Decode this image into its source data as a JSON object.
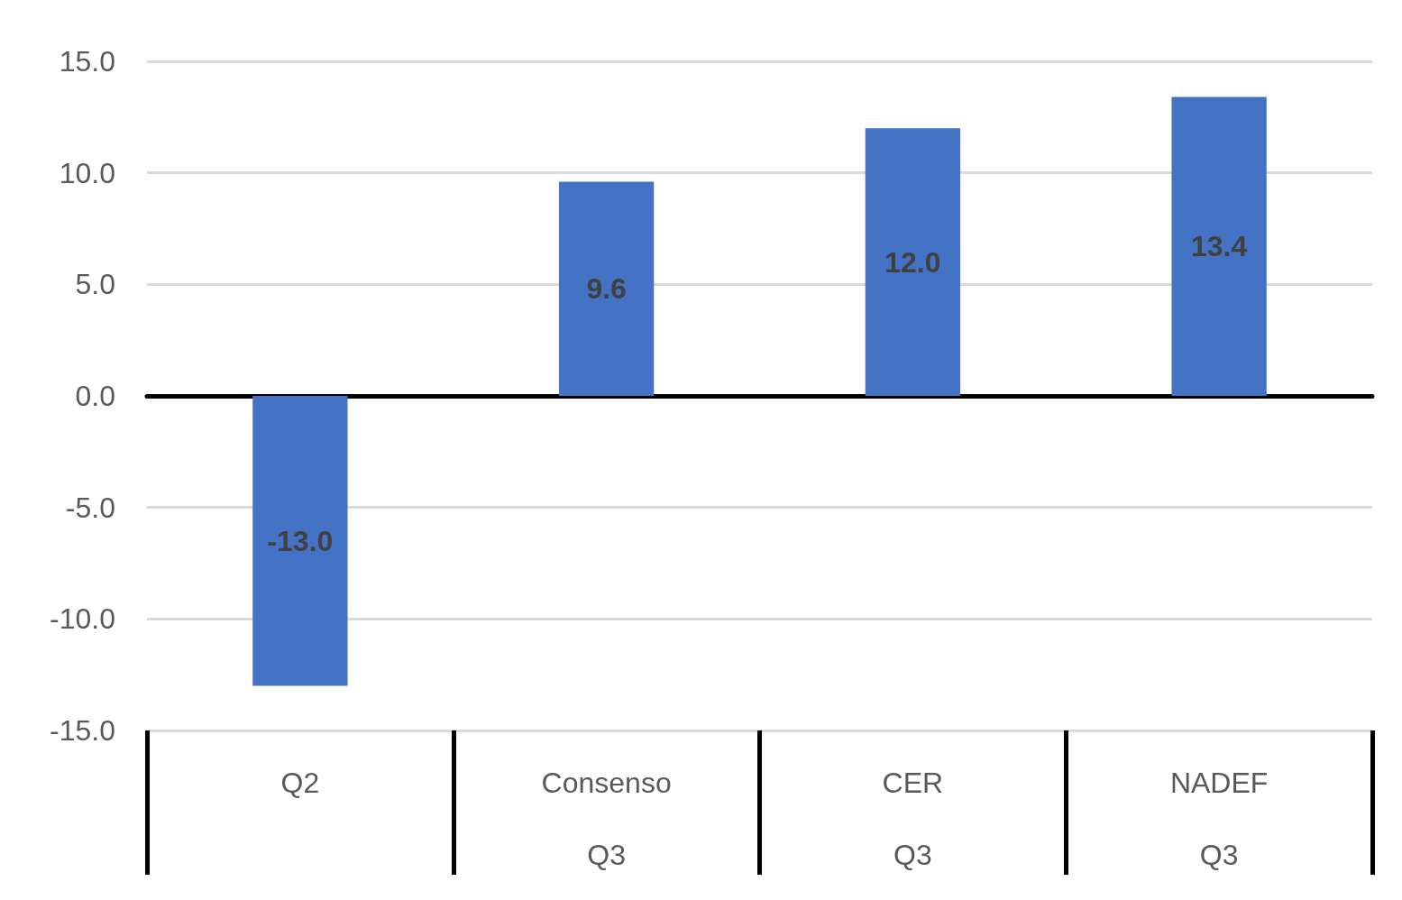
{
  "chart_data": {
    "type": "bar",
    "categories": [
      "Q2",
      "Consenso\nQ3",
      "CER\nQ3",
      "NADEF\nQ3"
    ],
    "values": [
      -13.0,
      9.6,
      12.0,
      13.4
    ],
    "value_labels": [
      "-13.0",
      "9.6",
      "12.0",
      "13.4"
    ],
    "color": "#4472c4",
    "ylim": [
      -15,
      15
    ],
    "yticks": [
      {
        "value": -15,
        "label": "-15.0"
      },
      {
        "value": -10,
        "label": "-10.0"
      },
      {
        "value": -5,
        "label": "-5.0"
      },
      {
        "value": 0,
        "label": "0.0"
      },
      {
        "value": 5,
        "label": "5.0"
      },
      {
        "value": 10,
        "label": "10.0"
      },
      {
        "value": 15,
        "label": "15.0"
      }
    ],
    "grid": "y"
  }
}
